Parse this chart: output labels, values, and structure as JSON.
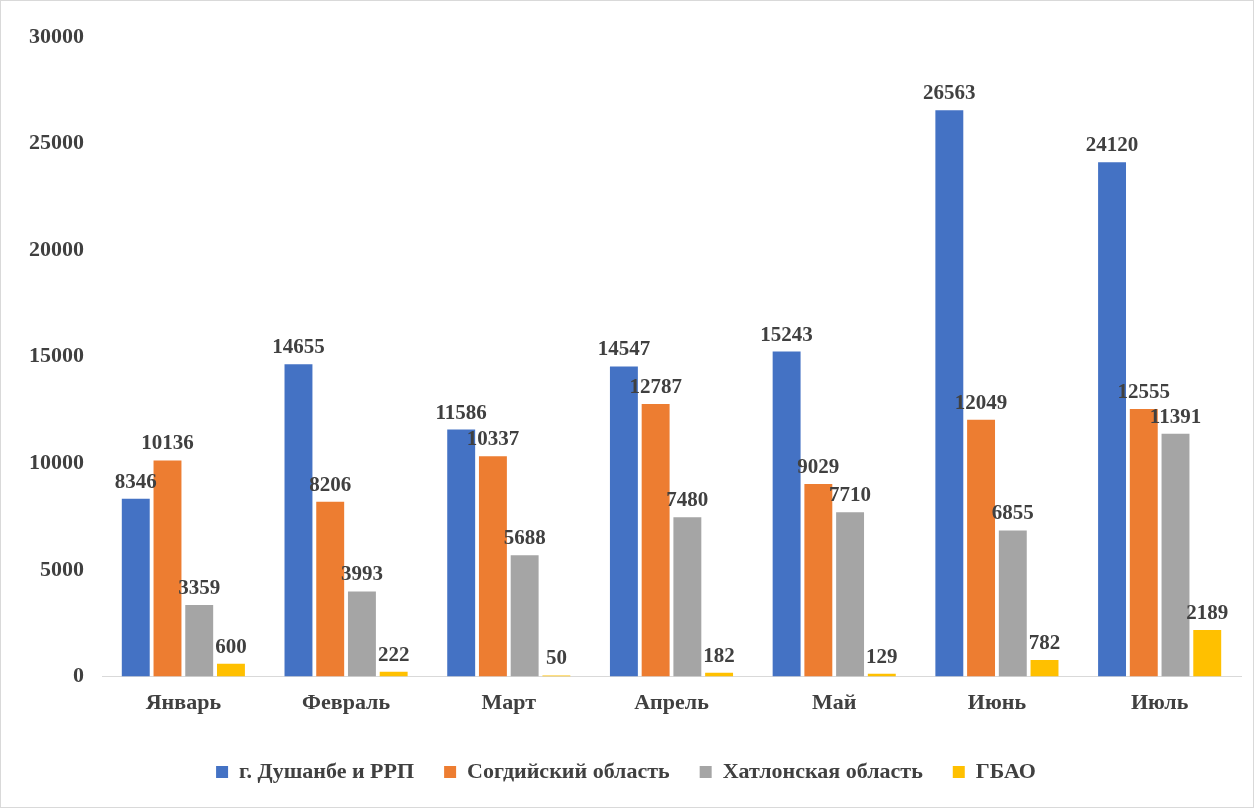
{
  "chart_data": {
    "type": "bar",
    "categories": [
      "Январь",
      "Февраль",
      "Март",
      "Апрель",
      "Май",
      "Июнь",
      "Июль"
    ],
    "series": [
      {
        "name": "г. Душанбе и РРП",
        "color": "#4472c4",
        "values": [
          8346,
          14655,
          11586,
          14547,
          15243,
          26563,
          24120
        ]
      },
      {
        "name": "Согдийский область",
        "color": "#ed7d31",
        "values": [
          10136,
          8206,
          10337,
          12787,
          9029,
          12049,
          12555
        ]
      },
      {
        "name": "Хатлонская область",
        "color": "#a5a5a5",
        "values": [
          3359,
          3993,
          5688,
          7480,
          7710,
          6855,
          11391
        ]
      },
      {
        "name": "ГБАО",
        "color": "#ffc000",
        "values": [
          600,
          222,
          50,
          182,
          129,
          782,
          2189
        ]
      }
    ],
    "ylim": [
      0,
      30000
    ],
    "yticks": [
      0,
      5000,
      10000,
      15000,
      20000,
      25000,
      30000
    ],
    "grid": false,
    "legend": "bottom",
    "data_labels": true
  }
}
